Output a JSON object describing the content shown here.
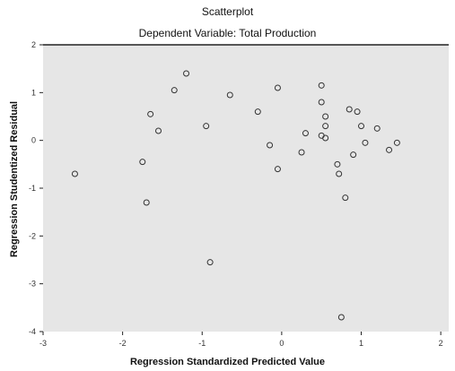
{
  "chart_data": {
    "type": "scatter",
    "title": "Scatterplot",
    "subtitle": "Dependent Variable: Total Production",
    "xlabel": "Regression Standardized Predicted Value",
    "ylabel": "Regression Studentized Residual",
    "xlim": [
      -3.0,
      2.1
    ],
    "ylim": [
      -4.0,
      2.0
    ],
    "xticks": [
      -3,
      -2,
      -1,
      0,
      1,
      2
    ],
    "yticks": [
      -4,
      -3,
      -2,
      -1,
      0,
      1,
      2
    ],
    "xtick_labels": [
      "-3",
      "-2",
      "-1",
      "0",
      "1",
      "2"
    ],
    "ytick_labels": [
      "-4",
      "-3",
      "-2",
      "-1",
      "0",
      "1",
      "2"
    ],
    "grid": false,
    "points": [
      {
        "x": -2.6,
        "y": -0.7
      },
      {
        "x": -1.75,
        "y": -0.45
      },
      {
        "x": -1.7,
        "y": -1.3
      },
      {
        "x": -1.65,
        "y": 0.55
      },
      {
        "x": -1.55,
        "y": 0.2
      },
      {
        "x": -1.35,
        "y": 1.05
      },
      {
        "x": -1.2,
        "y": 1.4
      },
      {
        "x": -0.95,
        "y": 0.3
      },
      {
        "x": -0.9,
        "y": -2.55
      },
      {
        "x": -0.65,
        "y": 0.95
      },
      {
        "x": -0.3,
        "y": 0.6
      },
      {
        "x": -0.15,
        "y": -0.1
      },
      {
        "x": -0.05,
        "y": -0.6
      },
      {
        "x": -0.05,
        "y": 1.1
      },
      {
        "x": 0.25,
        "y": -0.25
      },
      {
        "x": 0.3,
        "y": 0.15
      },
      {
        "x": 0.5,
        "y": 0.1
      },
      {
        "x": 0.55,
        "y": 0.5
      },
      {
        "x": 0.5,
        "y": 0.8
      },
      {
        "x": 0.55,
        "y": 0.3
      },
      {
        "x": 0.55,
        "y": 0.05
      },
      {
        "x": 0.5,
        "y": 1.15
      },
      {
        "x": 0.7,
        "y": -0.5
      },
      {
        "x": 0.72,
        "y": -0.7
      },
      {
        "x": 0.75,
        "y": -3.7
      },
      {
        "x": 0.8,
        "y": -1.2
      },
      {
        "x": 0.85,
        "y": 0.65
      },
      {
        "x": 0.9,
        "y": -0.3
      },
      {
        "x": 0.95,
        "y": 0.6
      },
      {
        "x": 1.0,
        "y": 0.3
      },
      {
        "x": 1.05,
        "y": -0.05
      },
      {
        "x": 1.2,
        "y": 0.25
      },
      {
        "x": 1.35,
        "y": -0.2
      },
      {
        "x": 1.45,
        "y": -0.05
      }
    ]
  },
  "colors": {
    "plot_background": "#e6e6e6",
    "marker_stroke": "#333333",
    "axis": "#222222"
  }
}
